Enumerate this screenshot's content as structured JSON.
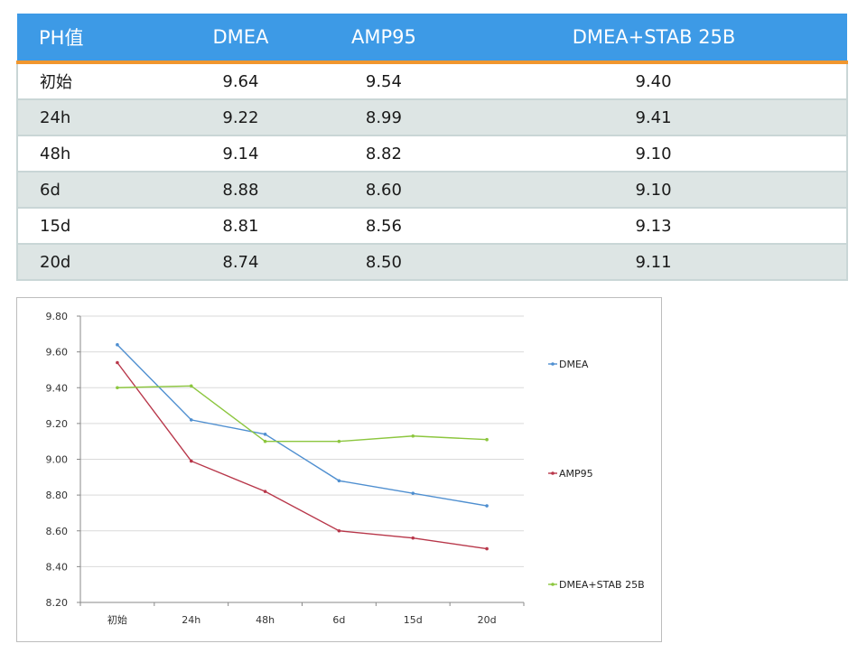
{
  "table": {
    "headers": [
      "PH值",
      "DMEA",
      "AMP95",
      "DMEA+STAB 25B"
    ],
    "rows": [
      [
        "初始",
        "9.64",
        "9.54",
        "9.40"
      ],
      [
        "24h",
        "9.22",
        "8.99",
        "9.41"
      ],
      [
        "48h",
        "9.14",
        "8.82",
        "9.10"
      ],
      [
        "6d",
        "8.88",
        "8.60",
        "9.10"
      ],
      [
        "15d",
        "8.81",
        "8.56",
        "9.13"
      ],
      [
        "20d",
        "8.74",
        "8.50",
        "9.11"
      ]
    ]
  },
  "colors": {
    "header_bg": "#3d9ae6",
    "header_rule": "#f0962e",
    "row_stripe": "#dde5e4"
  },
  "chart_data": {
    "type": "line",
    "categories": [
      "初始",
      "24h",
      "48h",
      "6d",
      "15d",
      "20d"
    ],
    "series": [
      {
        "name": "DMEA",
        "color": "#4f8fd0",
        "values": [
          9.64,
          9.22,
          9.14,
          8.88,
          8.81,
          8.74
        ]
      },
      {
        "name": "AMP95",
        "color": "#b8374a",
        "values": [
          9.54,
          8.99,
          8.82,
          8.6,
          8.56,
          8.5
        ]
      },
      {
        "name": "DMEA+STAB 25B",
        "color": "#8cc63e",
        "values": [
          9.4,
          9.41,
          9.1,
          9.1,
          9.13,
          9.11
        ]
      }
    ],
    "yticks": [
      "9.80",
      "9.60",
      "9.40",
      "9.20",
      "9.00",
      "8.80",
      "8.60",
      "8.40",
      "8.20"
    ],
    "ylim": [
      8.2,
      9.8
    ],
    "grid": true,
    "legend_position": "right"
  }
}
